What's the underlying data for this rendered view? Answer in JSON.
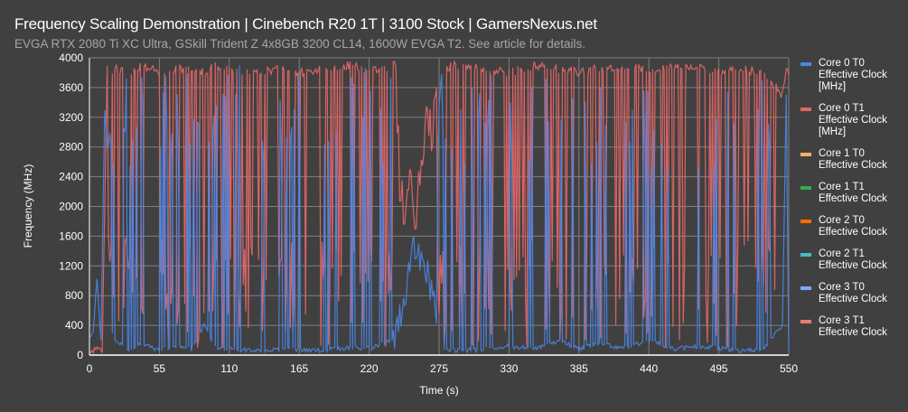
{
  "header": {
    "title": "Frequency Scaling Demonstration | Cinebench R20 1T | 3100 Stock | GamersNexus.net",
    "subtitle": "EVGA RTX 2080 Ti XC Ultra, GSkill Trident Z 4x8GB 3200 CL14, 1600W EVGA T2. See article for details."
  },
  "axes": {
    "ylabel": "Frequency (MHz)",
    "xlabel": "Time (s)",
    "yticks": [
      "0",
      "400",
      "800",
      "1200",
      "1600",
      "2000",
      "2400",
      "2800",
      "3200",
      "3600",
      "4000"
    ],
    "xticks": [
      "0",
      "55",
      "110",
      "165",
      "220",
      "275",
      "330",
      "385",
      "440",
      "495",
      "550"
    ]
  },
  "legend": [
    {
      "label": "Core 0 T0\nEffective Clock\n[MHz]",
      "color": "#4a86e8"
    },
    {
      "label": "Core 0 T1\nEffective Clock\n[MHz]",
      "color": "#e06666"
    },
    {
      "label": "Core 1 T0\nEffective Clock",
      "color": "#f6b26b"
    },
    {
      "label": "Core 1 T1\nEffective Clock",
      "color": "#34a853"
    },
    {
      "label": "Core 2 T0\nEffective Clock",
      "color": "#ff6d01"
    },
    {
      "label": "Core 2 T1\nEffective Clock",
      "color": "#46bdc6"
    },
    {
      "label": "Core 3 T0\nEffective Clock",
      "color": "#7baaf7"
    },
    {
      "label": "Core 3 T1\nEffective Clock",
      "color": "#f07b72"
    }
  ],
  "chart_data": {
    "type": "line",
    "title": "Frequency Scaling Demonstration | Cinebench R20 1T | 3100 Stock | GamersNexus.net",
    "subtitle": "EVGA RTX 2080 Ti XC Ultra, GSkill Trident Z 4x8GB 3200 CL14, 1600W EVGA T2. See article for details.",
    "xlabel": "Time (s)",
    "ylabel": "Frequency (MHz)",
    "xlim": [
      0,
      550
    ],
    "ylim": [
      0,
      4000
    ],
    "xticks": [
      0,
      55,
      110,
      165,
      220,
      275,
      330,
      385,
      440,
      495,
      550
    ],
    "yticks": [
      0,
      400,
      800,
      1200,
      1600,
      2000,
      2400,
      2800,
      3200,
      3600,
      4000
    ],
    "grid": true,
    "legend_position": "right",
    "series": [
      {
        "name": "Core 0 T0 Effective Clock [MHz]",
        "color": "#4a86e8",
        "description": "Mostly idle ~50-200 MHz with frequent spikes to 3000-3900 MHz; early spike ~3300 at t~12s; broad 400-1600 MHz hump around t~245-270s",
        "x": [
          0,
          3,
          6,
          9,
          12,
          14,
          16,
          20,
          30,
          40,
          55,
          70,
          80,
          90,
          100,
          110,
          130,
          150,
          165,
          185,
          205,
          220,
          240,
          250,
          255,
          260,
          265,
          270,
          275,
          290,
          310,
          330,
          350,
          370,
          385,
          400,
          420,
          440,
          460,
          480,
          495,
          510,
          530,
          545,
          548,
          550
        ],
        "values": [
          250,
          300,
          1050,
          200,
          3300,
          2800,
          400,
          200,
          80,
          150,
          60,
          120,
          80,
          400,
          80,
          90,
          60,
          80,
          70,
          60,
          100,
          90,
          200,
          1000,
          1600,
          1200,
          1100,
          900,
          100,
          60,
          80,
          120,
          80,
          200,
          80,
          150,
          100,
          200,
          80,
          120,
          90,
          60,
          70,
          400,
          3500,
          80
        ]
      },
      {
        "name": "Core 0 T1 Effective Clock [MHz]",
        "color": "#e06666",
        "description": "Mostly ~3800-3900 MHz with frequent drops to ~100-400 MHz; low ~50-100 MHz for first ~12s; dip region t~240-265s at ~1800-2400 MHz",
        "x": [
          0,
          5,
          10,
          14,
          16,
          20,
          30,
          40,
          55,
          70,
          80,
          90,
          100,
          110,
          130,
          150,
          165,
          185,
          205,
          220,
          240,
          245,
          250,
          255,
          260,
          265,
          270,
          275,
          290,
          310,
          330,
          350,
          370,
          385,
          400,
          420,
          440,
          460,
          480,
          495,
          510,
          530,
          545,
          548,
          550
        ],
        "values": [
          50,
          100,
          60,
          3900,
          3700,
          3850,
          3800,
          3900,
          3800,
          3850,
          3850,
          3800,
          3900,
          3850,
          3800,
          3850,
          3800,
          3850,
          3900,
          3850,
          3850,
          2000,
          2200,
          1900,
          2300,
          3000,
          3200,
          3850,
          3900,
          3850,
          3800,
          3900,
          3850,
          3800,
          3850,
          3900,
          3850,
          3900,
          3850,
          3800,
          3850,
          3800,
          3500,
          3850,
          3800
        ]
      },
      {
        "name": "Core 1 T0 Effective Clock",
        "color": "#f6b26b",
        "values": []
      },
      {
        "name": "Core 1 T1 Effective Clock",
        "color": "#34a853",
        "values": []
      },
      {
        "name": "Core 2 T0 Effective Clock",
        "color": "#ff6d01",
        "values": []
      },
      {
        "name": "Core 2 T1 Effective Clock",
        "color": "#46bdc6",
        "values": []
      },
      {
        "name": "Core 3 T0 Effective Clock",
        "color": "#7baaf7",
        "values": []
      },
      {
        "name": "Core 3 T1 Effective Clock",
        "color": "#f07b72",
        "values": []
      }
    ]
  }
}
